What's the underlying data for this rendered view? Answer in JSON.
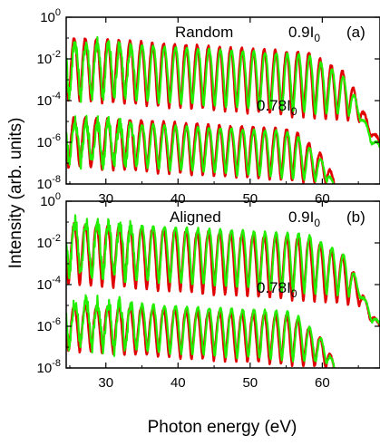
{
  "figure": {
    "xlabel": "Photon energy (eV)",
    "ylabel": "Intensity (arb. units)"
  },
  "chart_data": [
    {
      "type": "line",
      "panel_label": "(a)",
      "condition_label": "Random",
      "xlim": [
        24.5,
        68
      ],
      "x_ticks": [
        30,
        40,
        50,
        60
      ],
      "x_tick_labels": [
        "30",
        "40",
        "50",
        "60"
      ],
      "y_scale": "log",
      "ylim_exponent": [
        -8,
        0
      ],
      "y_ticks_exponent": [
        -8,
        -6,
        -4,
        -2,
        0
      ],
      "y_tick_labels": [
        {
          "base": "10",
          "exp": "0"
        },
        {
          "base": "10",
          "exp": "-2"
        },
        {
          "base": "10",
          "exp": "-4"
        },
        {
          "base": "10",
          "exp": "-6"
        },
        {
          "base": "10",
          "exp": "-8"
        }
      ],
      "annotations": [
        {
          "main": "0.9I",
          "sub": "0",
          "trace": "upper"
        },
        {
          "main": "0.78I",
          "sub": "0",
          "trace": "lower"
        }
      ],
      "harmonic_spacing_eV": 1.55,
      "first_peak_eV": 25.6,
      "cutoff_eV": {
        "upper": 63.5,
        "lower": 60.5
      },
      "series": [
        {
          "color": "#e00000",
          "trace": "upper",
          "peak_log10": [
            -1.0,
            -1.7,
            -3.2
          ],
          "dip_log10": [
            -4.0,
            -5.0
          ],
          "peak_at_eV": [
            26,
            58,
            66
          ]
        },
        {
          "color": "#22ee00",
          "trace": "upper",
          "peak_log10": [
            -1.2,
            -1.8,
            -3.5
          ],
          "dip_log10": [
            -3.8,
            -4.8
          ],
          "peak_at_eV": [
            26,
            58,
            66
          ]
        },
        {
          "color": "#e00000",
          "trace": "lower",
          "peak_log10": [
            -4.8,
            -5.4,
            -7.2
          ],
          "dip_log10": [
            -7.2,
            -8.0
          ],
          "peak_at_eV": [
            26,
            56,
            62
          ]
        },
        {
          "color": "#22ee00",
          "trace": "lower",
          "peak_log10": [
            -5.0,
            -5.5,
            -7.5
          ],
          "dip_log10": [
            -7.0,
            -7.9
          ],
          "peak_at_eV": [
            26,
            56,
            62
          ]
        }
      ]
    },
    {
      "type": "line",
      "panel_label": "(b)",
      "condition_label": "Aligned",
      "xlim": [
        24.5,
        68
      ],
      "x_ticks": [
        30,
        40,
        50,
        60
      ],
      "x_tick_labels": [
        "30",
        "40",
        "50",
        "60"
      ],
      "y_scale": "log",
      "ylim_exponent": [
        -8,
        0
      ],
      "y_ticks_exponent": [
        -8,
        -6,
        -4,
        -2,
        0
      ],
      "y_tick_labels": [
        {
          "base": "10",
          "exp": "0"
        },
        {
          "base": "10",
          "exp": "-2"
        },
        {
          "base": "10",
          "exp": "-4"
        },
        {
          "base": "10",
          "exp": "-6"
        },
        {
          "base": "10",
          "exp": "-8"
        }
      ],
      "annotations": [
        {
          "main": "0.9I",
          "sub": "0",
          "trace": "upper"
        },
        {
          "main": "0.78I",
          "sub": "0",
          "trace": "lower"
        }
      ],
      "harmonic_spacing_eV": 1.55,
      "first_peak_eV": 25.6,
      "cutoff_eV": {
        "upper": 63.5,
        "lower": 60.5
      },
      "series": [
        {
          "color": "#e00000",
          "trace": "upper",
          "peak_log10": [
            -1.1,
            -1.8,
            -3.2
          ],
          "dip_log10": [
            -4.0,
            -5.0
          ],
          "peak_at_eV": [
            26,
            58,
            66
          ]
        },
        {
          "color": "#22ee00",
          "trace": "upper",
          "peak_log10": [
            -1.0,
            -1.6,
            -3.2
          ],
          "dip_log10": [
            -3.6,
            -4.6
          ],
          "peak_at_eV": [
            26,
            58,
            66
          ]
        },
        {
          "color": "#e00000",
          "trace": "lower",
          "peak_log10": [
            -5.0,
            -5.5,
            -7.2
          ],
          "dip_log10": [
            -7.2,
            -8.0
          ],
          "peak_at_eV": [
            26,
            56,
            62
          ]
        },
        {
          "color": "#22ee00",
          "trace": "lower",
          "peak_log10": [
            -4.8,
            -5.3,
            -7.3
          ],
          "dip_log10": [
            -7.0,
            -7.8
          ],
          "peak_at_eV": [
            26,
            56,
            62
          ]
        }
      ]
    }
  ]
}
